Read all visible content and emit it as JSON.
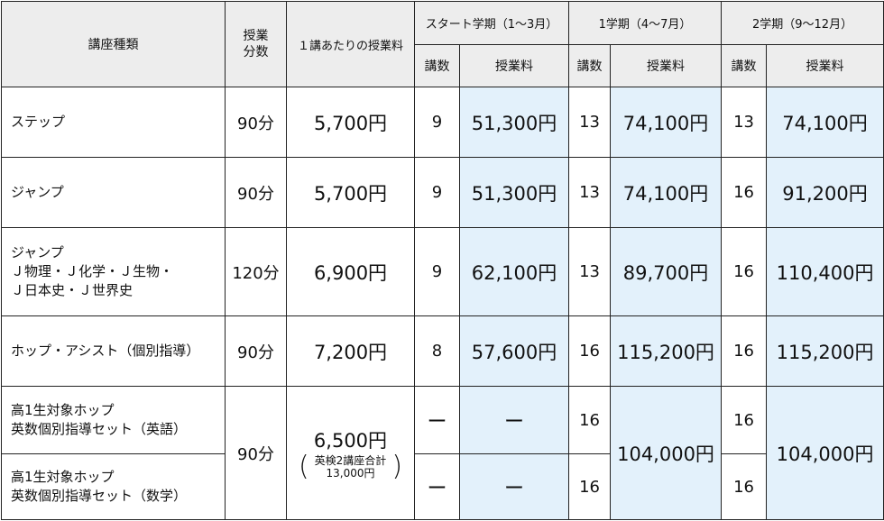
{
  "header": {
    "course_type": "講座種類",
    "lesson_time_line1": "授業",
    "lesson_time_line2": "分数",
    "fee_per_lesson": "１講あたりの授業料",
    "terms": [
      {
        "label": "スタート学期（1〜3月）",
        "count_label": "講数",
        "fee_label": "授業料"
      },
      {
        "label": "1学期（4〜7月）",
        "count_label": "講数",
        "fee_label": "授業料"
      },
      {
        "label": "2学期（9〜12月）",
        "count_label": "講数",
        "fee_label": "授業料"
      }
    ]
  },
  "rows": [
    {
      "name_lines": [
        "ステップ"
      ],
      "minutes": "90分",
      "per_lesson": "5,700円",
      "terms": [
        {
          "count": "9",
          "fee": "51,300円"
        },
        {
          "count": "13",
          "fee": "74,100円"
        },
        {
          "count": "13",
          "fee": "74,100円"
        }
      ]
    },
    {
      "name_lines": [
        "ジャンプ"
      ],
      "minutes": "90分",
      "per_lesson": "5,700円",
      "terms": [
        {
          "count": "9",
          "fee": "51,300円"
        },
        {
          "count": "13",
          "fee": "74,100円"
        },
        {
          "count": "16",
          "fee": "91,200円"
        }
      ]
    },
    {
      "name_lines": [
        "ジャンプ",
        "Ｊ物理・Ｊ化学・Ｊ生物・",
        "Ｊ日本史・Ｊ世界史"
      ],
      "minutes": "120分",
      "per_lesson": "6,900円",
      "terms": [
        {
          "count": "9",
          "fee": "62,100円"
        },
        {
          "count": "13",
          "fee": "89,700円"
        },
        {
          "count": "16",
          "fee": "110,400円"
        }
      ]
    },
    {
      "name_lines": [
        "ホップ・アシスト（個別指導）"
      ],
      "minutes": "90分",
      "per_lesson": "7,200円",
      "terms": [
        {
          "count": "8",
          "fee": "57,600円"
        },
        {
          "count": "16",
          "fee": "115,200円"
        },
        {
          "count": "16",
          "fee": "115,200円"
        }
      ]
    }
  ],
  "set_rows": {
    "minutes": "90分",
    "per_lesson": "6,500円",
    "note_line1": "英検2講座合計",
    "note_line2": "13,000円",
    "paren_open": "(",
    "paren_close": ")",
    "term1_fee": "104,000円",
    "term2_fee": "104,000円",
    "rows": [
      {
        "name_lines": [
          "高1生対象ホップ",
          "英数個別指導セット（英語）"
        ],
        "start_count": "ー",
        "start_fee": "ー",
        "term1_count": "16",
        "term2_count": "16"
      },
      {
        "name_lines": [
          "高1生対象ホップ",
          "英数個別指導セット（数学）"
        ],
        "start_count": "ー",
        "start_fee": "ー",
        "term1_count": "16",
        "term2_count": "16"
      }
    ]
  }
}
